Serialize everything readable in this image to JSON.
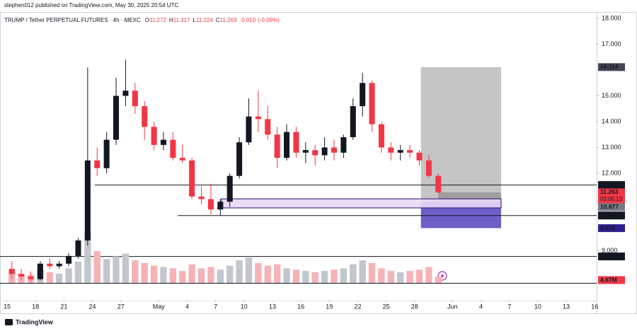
{
  "chart_data": {
    "type": "candlestick",
    "header": "stephen012 published on TradingView.com, May 30, 2025 20:54 UTC",
    "title": "TRUMP / Tether PERPETUAL FUTURES · 4h · MEXC",
    "ohlc_legend": [
      {
        "label": "O",
        "value": 11.272
      },
      {
        "label": "H",
        "value": 11.317
      },
      {
        "label": "L",
        "value": 11.224
      },
      {
        "label": "C",
        "value": 11.263
      }
    ],
    "change": {
      "value": -0.01,
      "label": "-0.010"
    },
    "change_pct": {
      "value": -0.09,
      "label": "(-0.09%)"
    },
    "x": [
      "2025-04-15",
      "2025-04-16",
      "2025-04-17",
      "2025-04-18",
      "2025-04-19",
      "2025-04-20",
      "2025-04-21",
      "2025-04-22",
      "2025-04-23",
      "2025-04-24",
      "2025-04-25",
      "2025-04-26",
      "2025-04-27",
      "2025-04-28",
      "2025-04-29",
      "2025-04-30",
      "2025-05-01",
      "2025-05-02",
      "2025-05-03",
      "2025-05-04",
      "2025-05-05",
      "2025-05-06",
      "2025-05-07",
      "2025-05-08",
      "2025-05-09",
      "2025-05-10",
      "2025-05-11",
      "2025-05-12",
      "2025-05-13",
      "2025-05-14",
      "2025-05-15",
      "2025-05-16",
      "2025-05-17",
      "2025-05-18",
      "2025-05-19",
      "2025-05-20",
      "2025-05-21",
      "2025-05-22",
      "2025-05-23",
      "2025-05-24",
      "2025-05-25",
      "2025-05-26",
      "2025-05-27",
      "2025-05-28",
      "2025-05-29",
      "2025-05-30"
    ],
    "open": [
      8.3,
      8.1,
      8.0,
      7.9,
      8.5,
      8.4,
      8.5,
      8.8,
      9.4,
      12.5,
      12.2,
      13.3,
      15.0,
      15.2,
      14.6,
      13.8,
      13.1,
      13.3,
      12.6,
      12.5,
      11.1,
      11.0,
      10.6,
      10.9,
      11.9,
      13.2,
      14.2,
      14.1,
      13.5,
      12.6,
      13.6,
      12.8,
      12.9,
      12.7,
      13.0,
      12.8,
      13.4,
      14.6,
      15.5,
      13.9,
      13.0,
      12.8,
      12.9,
      12.8,
      12.5,
      11.9
    ],
    "high": [
      8.6,
      8.3,
      8.2,
      8.6,
      8.7,
      8.6,
      8.9,
      9.5,
      16.1,
      13.0,
      13.6,
      15.7,
      16.4,
      15.5,
      14.8,
      14.0,
      13.6,
      13.6,
      13.1,
      12.6,
      11.5,
      11.6,
      11.0,
      12.0,
      13.4,
      14.9,
      15.2,
      14.6,
      13.8,
      13.9,
      13.8,
      13.2,
      13.1,
      13.4,
      13.3,
      13.5,
      14.9,
      15.9,
      15.6,
      14.0,
      13.2,
      13.1,
      13.1,
      12.9,
      12.7,
      12.0
    ],
    "low": [
      7.9,
      7.85,
      7.8,
      7.85,
      8.3,
      8.3,
      8.4,
      8.7,
      9.2,
      11.9,
      12.0,
      13.1,
      14.6,
      14.3,
      13.3,
      12.9,
      12.9,
      12.5,
      12.4,
      11.0,
      10.8,
      10.4,
      10.35,
      10.7,
      11.8,
      13.1,
      13.6,
      13.3,
      12.2,
      12.5,
      12.6,
      12.4,
      12.3,
      12.5,
      12.5,
      12.6,
      13.3,
      14.2,
      13.6,
      12.8,
      12.5,
      12.5,
      12.6,
      12.3,
      11.8,
      11.224
    ],
    "close": [
      8.1,
      8.0,
      7.9,
      8.5,
      8.4,
      8.5,
      8.8,
      9.4,
      12.5,
      12.2,
      13.3,
      15.0,
      15.2,
      14.6,
      13.8,
      13.1,
      13.3,
      12.6,
      12.5,
      11.1,
      11.0,
      10.6,
      10.9,
      11.9,
      13.2,
      14.2,
      14.1,
      13.5,
      12.6,
      13.6,
      12.8,
      12.9,
      12.7,
      13.0,
      12.8,
      13.4,
      14.6,
      15.5,
      13.9,
      13.0,
      12.8,
      12.9,
      12.8,
      12.5,
      11.9,
      11.263
    ],
    "volume": [
      9,
      7,
      6,
      10,
      8,
      7,
      11,
      16,
      38,
      24,
      18,
      20,
      22,
      17,
      15,
      13,
      12,
      11,
      9,
      14,
      11,
      12,
      10,
      13,
      17,
      19,
      15,
      13,
      14,
      11,
      10,
      9,
      8,
      9,
      10,
      11,
      14,
      17,
      15,
      11,
      9,
      8,
      9,
      10,
      12,
      4.67
    ],
    "volume_label": "4.67M",
    "vlim": [
      0,
      40
    ],
    "ylim": [
      7.07,
      18.22
    ],
    "yticks": [
      {
        "value": 9,
        "label": "9.000"
      },
      {
        "value": 12,
        "label": "12.000"
      },
      {
        "value": 13,
        "label": "13.000"
      },
      {
        "value": 14,
        "label": "14.000"
      },
      {
        "value": 15,
        "label": "15.000"
      },
      {
        "value": 17,
        "label": "17.000"
      },
      {
        "value": 18,
        "label": "18.000"
      }
    ],
    "xlim": [
      "2025-04-14T06:00",
      "2025-06-16T05:00"
    ],
    "xticks": [
      {
        "value": "2025-04-15",
        "label": "15"
      },
      {
        "value": "2025-04-18",
        "label": "18"
      },
      {
        "value": "2025-04-21",
        "label": "21"
      },
      {
        "value": "2025-04-24",
        "label": "24"
      },
      {
        "value": "2025-04-27",
        "label": "27"
      },
      {
        "value": "2025-05-01",
        "label": "May"
      },
      {
        "value": "2025-05-04",
        "label": "4"
      },
      {
        "value": "2025-05-07",
        "label": "7"
      },
      {
        "value": "2025-05-10",
        "label": "10"
      },
      {
        "value": "2025-05-13",
        "label": "13"
      },
      {
        "value": "2025-05-16",
        "label": "16"
      },
      {
        "value": "2025-05-19",
        "label": "19"
      },
      {
        "value": "2025-05-22",
        "label": "22"
      },
      {
        "value": "2025-05-25",
        "label": "25"
      },
      {
        "value": "2025-05-28",
        "label": "28"
      },
      {
        "value": "2025-06-01",
        "label": "Jun"
      },
      {
        "value": "2025-06-04",
        "label": "4"
      },
      {
        "value": "2025-06-07",
        "label": "7"
      },
      {
        "value": "2025-06-10",
        "label": "10"
      },
      {
        "value": "2025-06-13",
        "label": "13"
      },
      {
        "value": "2025-06-16",
        "label": "16"
      }
    ],
    "grid": false,
    "levels": [
      {
        "value": 11.546,
        "start": "2025-04-24T06:00"
      },
      {
        "value": 10.365,
        "start": "2025-05-03"
      },
      {
        "value": 8.78,
        "label": "8.780"
      }
    ],
    "zone": {
      "top": 11.01,
      "bottom": 10.66,
      "start": "2025-05-07T14:00",
      "end": "2025-06-06T03:00"
    },
    "position": {
      "start": "2025-05-28T16:00",
      "end": "2025-06-06T03:00",
      "target": 16.114,
      "entry": 10.877,
      "stop": 9.876
    },
    "countdown": "03:05:13",
    "colors": {
      "up": "#131722",
      "down": "#f23645",
      "vol_up": "#c3c6cc",
      "vol_down": "#f6b3b7",
      "zone": "#e6d9f7",
      "zone_edge": "#3b1d7a",
      "profit": "#c2c2c2",
      "open_profit": "#9e9e9e",
      "loss": "#6c5fc7",
      "level": "#131722"
    },
    "footer": "TradingView"
  }
}
